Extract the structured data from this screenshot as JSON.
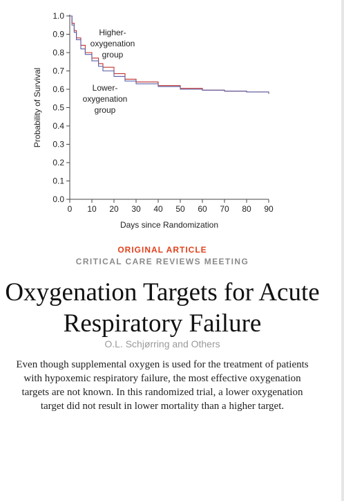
{
  "chart_data": {
    "type": "line",
    "xlabel": "Days since Randomization",
    "ylabel": "Probability of Survival",
    "xlim": [
      0,
      90
    ],
    "ylim": [
      0,
      1.0
    ],
    "x_ticks": [
      "0",
      "10",
      "20",
      "30",
      "40",
      "50",
      "60",
      "70",
      "80",
      "90"
    ],
    "y_ticks": [
      "0.0",
      "0.1",
      "0.2",
      "0.3",
      "0.4",
      "0.5",
      "0.6",
      "0.7",
      "0.8",
      "0.9",
      "1.0"
    ],
    "grid": false,
    "series": [
      {
        "name": "Higher-oxygenation group",
        "color": "#c0302f",
        "label_lines": [
          "Higher-",
          "oxygenation",
          "group"
        ],
        "x": [
          0,
          1,
          2,
          3,
          5,
          7,
          10,
          13,
          15,
          20,
          25,
          30,
          40,
          50,
          60,
          70,
          80,
          90
        ],
        "y": [
          1.0,
          0.96,
          0.92,
          0.88,
          0.84,
          0.8,
          0.77,
          0.74,
          0.72,
          0.685,
          0.655,
          0.64,
          0.62,
          0.605,
          0.595,
          0.59,
          0.585,
          0.575
        ]
      },
      {
        "name": "Lower-oxygenation group",
        "color": "#5b5ea6",
        "label_lines": [
          "Lower-",
          "oxygenation",
          "group"
        ],
        "x": [
          0,
          1,
          2,
          3,
          5,
          7,
          10,
          13,
          15,
          20,
          25,
          30,
          40,
          50,
          60,
          70,
          80,
          90
        ],
        "y": [
          1.0,
          0.95,
          0.91,
          0.87,
          0.82,
          0.79,
          0.755,
          0.725,
          0.7,
          0.67,
          0.645,
          0.63,
          0.615,
          0.6,
          0.595,
          0.59,
          0.585,
          0.575
        ]
      }
    ]
  },
  "article": {
    "type": "ORIGINAL ARTICLE",
    "meeting": "CRITICAL CARE REVIEWS MEETING",
    "title": "Oxygenation Targets for Acute Respiratory Failure",
    "authors": "O.L. Schjørring and Others",
    "summary": "Even though supplemental oxygen is used for the treatment of patients with hypoxemic respiratory failure, the most effective oxygenation targets are not known. In this randomized trial, a lower oxygenation target did not result in lower mortality than a higher target."
  }
}
